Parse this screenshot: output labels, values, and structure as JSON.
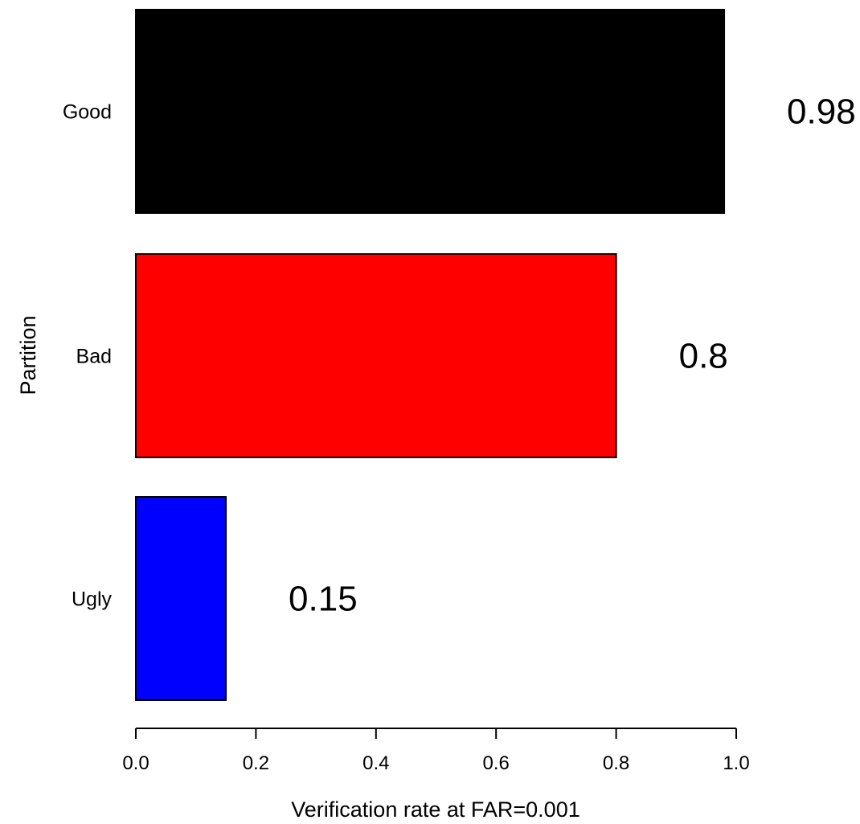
{
  "chart_data": {
    "type": "bar",
    "orientation": "horizontal",
    "categories": [
      "Good",
      "Bad",
      "Ugly"
    ],
    "values": [
      0.98,
      0.8,
      0.15
    ],
    "value_labels": [
      "0.98",
      "0.8",
      "0.15"
    ],
    "colors": [
      "#000000",
      "#ff0000",
      "#0000ff"
    ],
    "xlabel": "Verification rate at FAR=0.001",
    "ylabel": "Partition",
    "xlim": [
      0,
      1
    ],
    "xticks": [
      0,
      0.2,
      0.4,
      0.6,
      0.8,
      1
    ],
    "xtick_labels": [
      "0.0",
      "0.2",
      "0.4",
      "0.6",
      "0.8",
      "1.0"
    ],
    "grid": false,
    "legend": false
  }
}
